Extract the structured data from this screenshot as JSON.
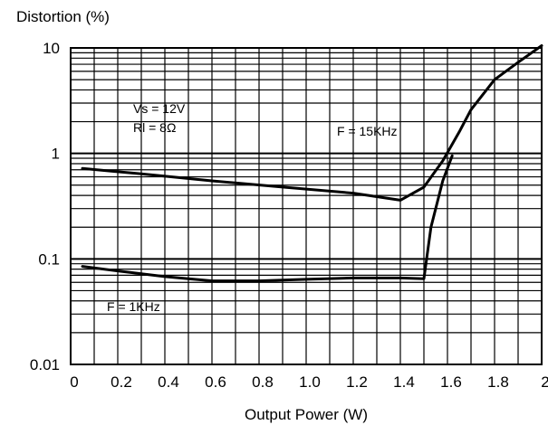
{
  "chart_data": {
    "type": "line",
    "ylabel": "Distortion (%)",
    "xlabel": "Output Power (W)",
    "x_ticks": [
      "0",
      "0.2",
      "0.4",
      "0.6",
      "0.8",
      "1.0",
      "1.2",
      "1.4",
      "1.6",
      "1.8",
      "2"
    ],
    "y_ticks": [
      "10",
      "1",
      "0.1",
      "0.01"
    ],
    "xlim": [
      0,
      2
    ],
    "ylim": [
      0.01,
      10
    ],
    "y_scale": "log",
    "grid": true,
    "conditions": [
      "Vs = 12V",
      "Rl = 8Ω"
    ],
    "series": [
      {
        "name": "F = 15KHz",
        "x": [
          0.05,
          0.3,
          0.6,
          0.9,
          1.2,
          1.4,
          1.5,
          1.58,
          1.65,
          1.7,
          1.8,
          1.9,
          2.0
        ],
        "y": [
          0.72,
          0.64,
          0.55,
          0.48,
          0.42,
          0.36,
          0.48,
          0.85,
          1.6,
          2.6,
          5.0,
          7.3,
          10.5
        ]
      },
      {
        "name": "F = 1KHz",
        "x": [
          0.05,
          0.2,
          0.4,
          0.6,
          0.8,
          1.0,
          1.2,
          1.4,
          1.5,
          1.53,
          1.58,
          1.62
        ],
        "y": [
          0.085,
          0.077,
          0.068,
          0.062,
          0.062,
          0.064,
          0.066,
          0.066,
          0.065,
          0.2,
          0.55,
          0.95
        ]
      }
    ]
  }
}
